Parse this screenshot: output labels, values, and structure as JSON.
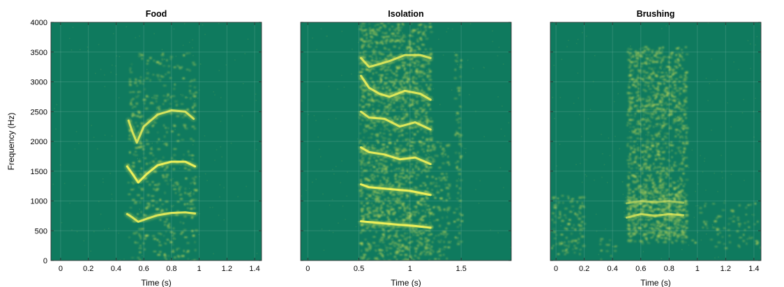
{
  "chart_data": [
    {
      "type": "heatmap",
      "title": "Food",
      "xlabel": "Time (s)",
      "ylabel": "Frequency (Hz)",
      "xlim": [
        -0.07,
        1.45
      ],
      "ylim": [
        0,
        4000
      ],
      "xticks": [
        0,
        0.2,
        0.4,
        0.6,
        0.8,
        1,
        1.2,
        1.4
      ],
      "xtick_labels": [
        "0",
        "0.2",
        "0.4",
        "0.6",
        "0.8",
        "1",
        "1.2",
        "1.4"
      ],
      "yticks": [
        0,
        500,
        1000,
        1500,
        2000,
        2500,
        3000,
        3500,
        4000
      ],
      "ytick_labels": [
        "0",
        "500",
        "1000",
        "1500",
        "2000",
        "2500",
        "3000",
        "3500",
        "4000"
      ],
      "grid": true,
      "colors": {
        "background": "#0f7a5e",
        "low": "#4a9a55",
        "high": "#f2f25a"
      },
      "energy_regions": [
        {
          "t0": 0.48,
          "t1": 0.97,
          "f0": 0,
          "f1": 3500,
          "intensity": 0.18
        }
      ],
      "harmonic_traces": [
        {
          "t": [
            0.48,
            0.52,
            0.56,
            0.62,
            0.7,
            0.8,
            0.9,
            0.97
          ],
          "f": [
            780,
            720,
            650,
            700,
            760,
            800,
            810,
            790
          ],
          "intensity": 0.9
        },
        {
          "t": [
            0.48,
            0.52,
            0.56,
            0.62,
            0.7,
            0.8,
            0.9,
            0.97
          ],
          "f": [
            1580,
            1450,
            1310,
            1450,
            1600,
            1660,
            1660,
            1580
          ],
          "intensity": 1.0
        },
        {
          "t": [
            0.49,
            0.52,
            0.55,
            0.6,
            0.7,
            0.8,
            0.9,
            0.96
          ],
          "f": [
            2350,
            2150,
            1980,
            2250,
            2450,
            2520,
            2500,
            2380
          ],
          "intensity": 0.85
        }
      ]
    },
    {
      "type": "heatmap",
      "title": "Isolation",
      "xlabel": "Time (s)",
      "ylabel": "",
      "xlim": [
        -0.07,
        1.99
      ],
      "ylim": [
        0,
        4000
      ],
      "xticks": [
        0,
        0.5,
        1,
        1.5
      ],
      "xtick_labels": [
        "0",
        "0.5",
        "1",
        "1.5"
      ],
      "yticks": [
        0,
        500,
        1000,
        1500,
        2000,
        2500,
        3000,
        3500,
        4000
      ],
      "ytick_labels": [],
      "grid": true,
      "colors": {
        "background": "#0f7a5e",
        "low": "#4a9a55",
        "high": "#f2f25a"
      },
      "energy_regions": [
        {
          "t0": 0.5,
          "t1": 1.2,
          "f0": 0,
          "f1": 4000,
          "intensity": 0.55
        },
        {
          "t0": 1.2,
          "t1": 1.38,
          "f0": 0,
          "f1": 2000,
          "intensity": 0.3
        },
        {
          "t0": 1.42,
          "t1": 1.5,
          "f0": 200,
          "f1": 3500,
          "intensity": 0.25
        }
      ],
      "harmonic_traces": [
        {
          "t": [
            0.52,
            0.7,
            0.9,
            1.05,
            1.2
          ],
          "f": [
            660,
            630,
            600,
            580,
            550
          ],
          "intensity": 1.0
        },
        {
          "t": [
            0.52,
            0.6,
            0.8,
            1.0,
            1.2
          ],
          "f": [
            1280,
            1230,
            1200,
            1170,
            1100
          ],
          "intensity": 1.0
        },
        {
          "t": [
            0.52,
            0.6,
            0.75,
            0.9,
            1.05,
            1.2
          ],
          "f": [
            1900,
            1820,
            1780,
            1700,
            1730,
            1620
          ],
          "intensity": 0.95
        },
        {
          "t": [
            0.52,
            0.6,
            0.75,
            0.9,
            1.05,
            1.2
          ],
          "f": [
            2500,
            2400,
            2380,
            2250,
            2320,
            2200
          ],
          "intensity": 0.9
        },
        {
          "t": [
            0.52,
            0.6,
            0.7,
            0.8,
            0.95,
            1.1,
            1.2
          ],
          "f": [
            3100,
            2900,
            2800,
            2750,
            2850,
            2800,
            2700
          ],
          "intensity": 0.9
        },
        {
          "t": [
            0.52,
            0.6,
            0.7,
            0.8,
            0.95,
            1.1,
            1.2
          ],
          "f": [
            3400,
            3250,
            3300,
            3350,
            3450,
            3450,
            3400
          ],
          "intensity": 0.85
        }
      ]
    },
    {
      "type": "heatmap",
      "title": "Brushing",
      "xlabel": "Time (s)",
      "ylabel": "",
      "xlim": [
        -0.04,
        1.45
      ],
      "ylim": [
        0,
        4000
      ],
      "xticks": [
        0,
        0.2,
        0.4,
        0.6,
        0.8,
        1,
        1.2,
        1.4
      ],
      "xtick_labels": [
        "0",
        "0.2",
        "0.4",
        "0.6",
        "0.8",
        "1",
        "1.2",
        "1.4"
      ],
      "yticks": [
        0,
        500,
        1000,
        1500,
        2000,
        2500,
        3000,
        3500,
        4000
      ],
      "ytick_labels": [],
      "grid": true,
      "colors": {
        "background": "#0f7a5e",
        "low": "#4a9a55",
        "high": "#f2f25a"
      },
      "energy_regions": [
        {
          "t0": 0.5,
          "t1": 0.92,
          "f0": 300,
          "f1": 3600,
          "intensity": 0.6
        },
        {
          "t0": 0.5,
          "t1": 0.92,
          "f0": 400,
          "f1": 1200,
          "intensity": 0.35
        },
        {
          "t0": -0.04,
          "t1": 0.2,
          "f0": 100,
          "f1": 1100,
          "intensity": 0.3
        },
        {
          "t0": 0.3,
          "t1": 0.42,
          "f0": 0,
          "f1": 400,
          "intensity": 0.2
        },
        {
          "t0": 0.95,
          "t1": 1.45,
          "f0": 200,
          "f1": 1000,
          "intensity": 0.12
        }
      ],
      "harmonic_traces": [
        {
          "t": [
            0.5,
            0.6,
            0.7,
            0.8,
            0.9
          ],
          "f": [
            720,
            780,
            750,
            780,
            760
          ],
          "intensity": 0.7
        },
        {
          "t": [
            0.5,
            0.6,
            0.7,
            0.8,
            0.9
          ],
          "f": [
            960,
            1000,
            980,
            1000,
            970
          ],
          "intensity": 0.5
        }
      ]
    }
  ]
}
